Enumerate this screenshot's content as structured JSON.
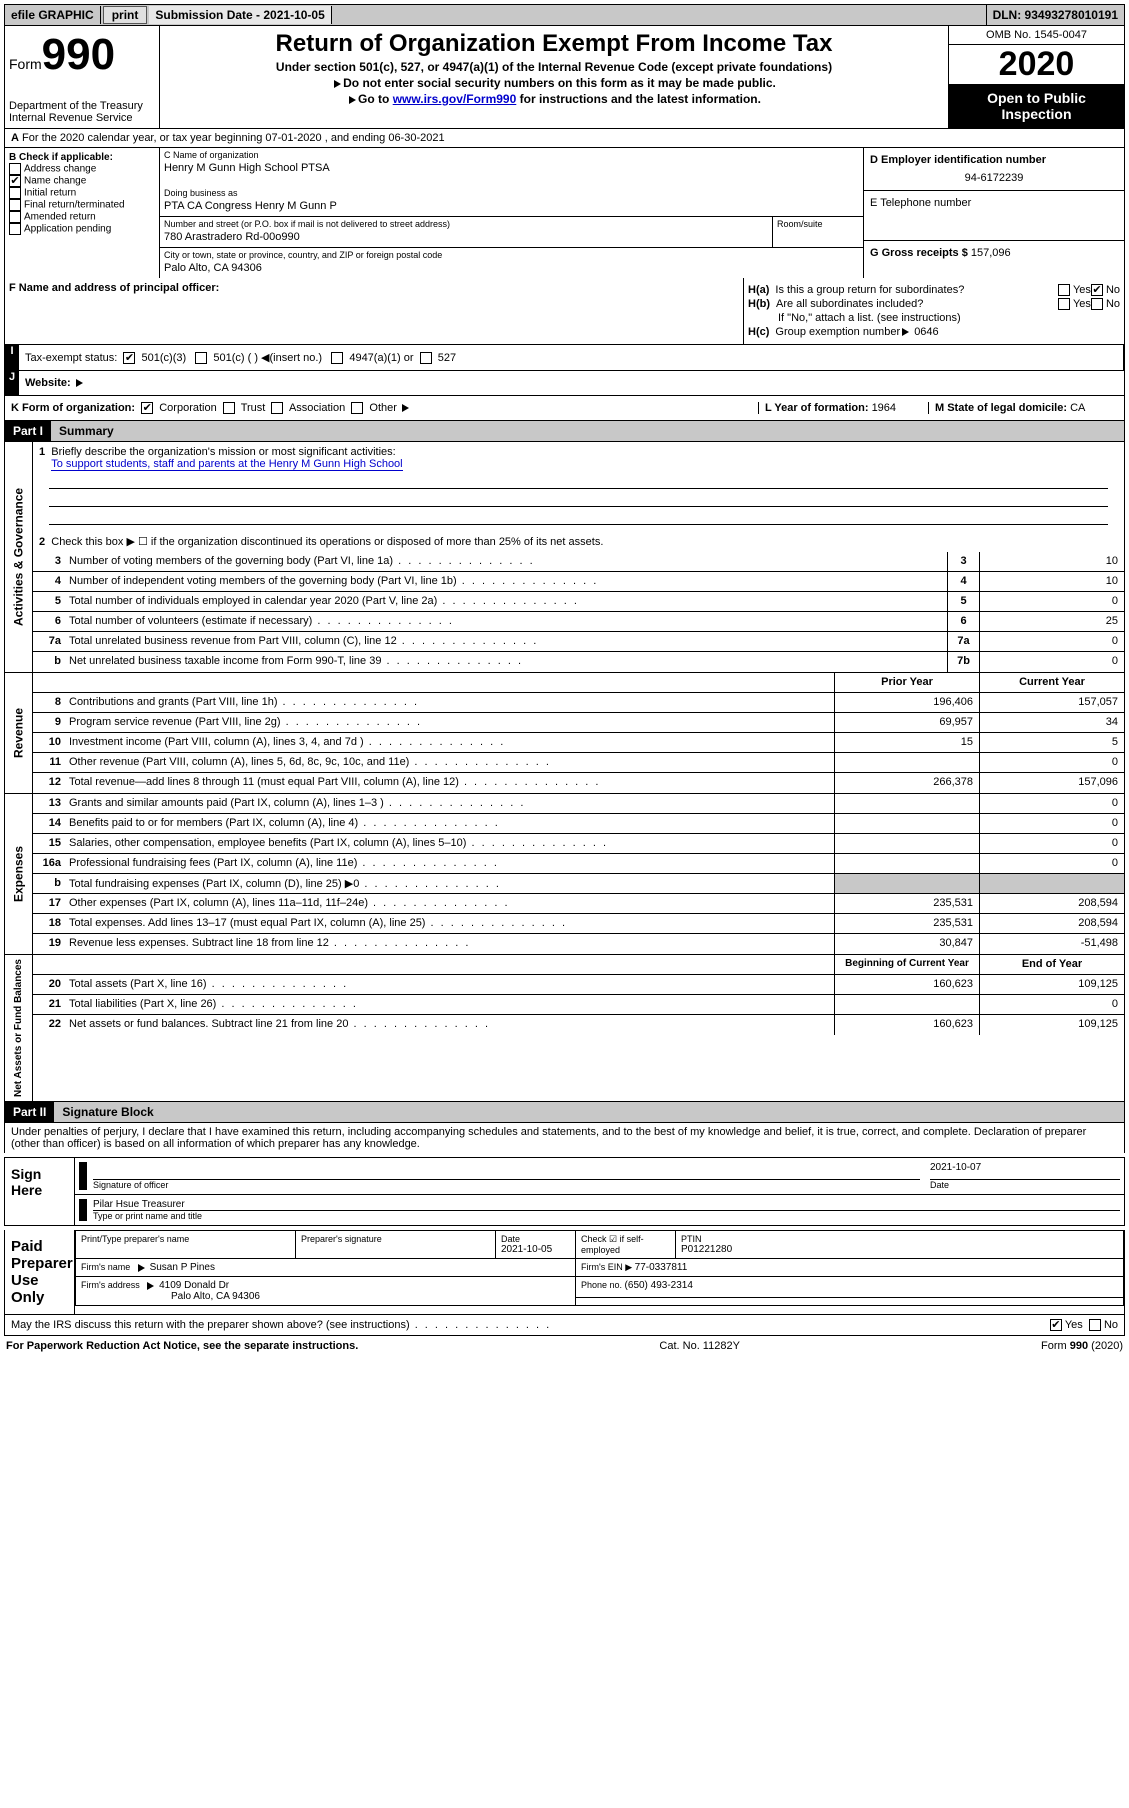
{
  "topbar": {
    "efile": "efile GRAPHIC",
    "print": "print",
    "sub_label": "Submission Date - 2021-10-05",
    "dln": "DLN: 93493278010191"
  },
  "header": {
    "form_word": "Form",
    "form_num": "990",
    "dept": "Department of the Treasury",
    "irs": "Internal Revenue Service",
    "title": "Return of Organization Exempt From Income Tax",
    "sub1": "Under section 501(c), 527, or 4947(a)(1) of the Internal Revenue Code (except private foundations)",
    "sub2": "Do not enter social security numbers on this form as it may be made public.",
    "sub3_a": "Go to ",
    "sub3_link": "www.irs.gov/Form990",
    "sub3_b": " for instructions and the latest information.",
    "omb": "OMB No. 1545-0047",
    "year": "2020",
    "inspect": "Open to Public Inspection"
  },
  "row_a": {
    "text": "For the 2020 calendar year, or tax year beginning 07-01-2020     , and ending 06-30-2021",
    "prefix": "A"
  },
  "col_b": {
    "title": "B Check if applicable:",
    "items": [
      "Address change",
      "Name change",
      "Initial return",
      "Final return/terminated",
      "Amended return",
      "Application pending"
    ],
    "checked_idx": 1
  },
  "col_c": {
    "name_label": "C Name of organization",
    "name": "Henry M Gunn High School PTSA",
    "dba_label": "Doing business as",
    "dba": "PTA CA Congress Henry M Gunn P",
    "addr_label": "Number and street (or P.O. box if mail is not delivered to street address)",
    "room_label": "Room/suite",
    "addr": "780 Arastradero Rd-00o990",
    "city_label": "City or town, state or province, country, and ZIP or foreign postal code",
    "city": "Palo Alto, CA  94306"
  },
  "col_de": {
    "d_label": "D Employer identification number",
    "d_val": "94-6172239",
    "e_label": "E Telephone number",
    "g_label": "G Gross receipts $ ",
    "g_val": "157,096"
  },
  "row_f": {
    "label": "F  Name and address of principal officer:"
  },
  "row_h": {
    "ha": "Is this a group return for subordinates?",
    "hb": "Are all subordinates included?",
    "hb_note": "If \"No,\" attach a list. (see instructions)",
    "hc_label": "Group exemption number",
    "hc_val": "0646",
    "yes": "Yes",
    "no": "No"
  },
  "row_i": {
    "label": "Tax-exempt status:",
    "o501c3": "501(c)(3)",
    "o501c": "501(c) (  )",
    "insert": "(insert no.)",
    "o4947": "4947(a)(1) or",
    "o527": "527"
  },
  "row_j": {
    "label": "Website:"
  },
  "row_k": {
    "label": "K Form of organization:",
    "corp": "Corporation",
    "trust": "Trust",
    "assoc": "Association",
    "other": "Other",
    "l_label": "L Year of formation: ",
    "l_val": "1964",
    "m_label": "M State of legal domicile: ",
    "m_val": "CA"
  },
  "part1": {
    "num": "Part I",
    "title": "Summary"
  },
  "summary": {
    "q1": "Briefly describe the organization's mission or most significant activities:",
    "q1_ans": "To support students, staff and parents at the Henry M Gunn High School",
    "q2": "Check this box ▶ ☐  if the organization discontinued its operations or disposed of more than 25% of its net assets.",
    "rows_single": [
      {
        "n": "3",
        "d": "Number of voting members of the governing body (Part VI, line 1a)",
        "l": "3",
        "v": "10"
      },
      {
        "n": "4",
        "d": "Number of independent voting members of the governing body (Part VI, line 1b)",
        "l": "4",
        "v": "10"
      },
      {
        "n": "5",
        "d": "Total number of individuals employed in calendar year 2020 (Part V, line 2a)",
        "l": "5",
        "v": "0"
      },
      {
        "n": "6",
        "d": "Total number of volunteers (estimate if necessary)",
        "l": "6",
        "v": "25"
      },
      {
        "n": "7a",
        "d": "Total unrelated business revenue from Part VIII, column (C), line 12",
        "l": "7a",
        "v": "0"
      },
      {
        "n": "b",
        "d": "Net unrelated business taxable income from Form 990-T, line 39",
        "l": "7b",
        "v": "0"
      }
    ],
    "hdr_prior": "Prior Year",
    "hdr_current": "Current Year",
    "rev_rows": [
      {
        "n": "8",
        "d": "Contributions and grants (Part VIII, line 1h)",
        "p": "196,406",
        "c": "157,057"
      },
      {
        "n": "9",
        "d": "Program service revenue (Part VIII, line 2g)",
        "p": "69,957",
        "c": "34"
      },
      {
        "n": "10",
        "d": "Investment income (Part VIII, column (A), lines 3, 4, and 7d )",
        "p": "15",
        "c": "5"
      },
      {
        "n": "11",
        "d": "Other revenue (Part VIII, column (A), lines 5, 6d, 8c, 9c, 10c, and 11e)",
        "p": "",
        "c": "0"
      },
      {
        "n": "12",
        "d": "Total revenue—add lines 8 through 11 (must equal Part VIII, column (A), line 12)",
        "p": "266,378",
        "c": "157,096"
      }
    ],
    "exp_rows": [
      {
        "n": "13",
        "d": "Grants and similar amounts paid (Part IX, column (A), lines 1–3 )",
        "p": "",
        "c": "0"
      },
      {
        "n": "14",
        "d": "Benefits paid to or for members (Part IX, column (A), line 4)",
        "p": "",
        "c": "0"
      },
      {
        "n": "15",
        "d": "Salaries, other compensation, employee benefits (Part IX, column (A), lines 5–10)",
        "p": "",
        "c": "0"
      },
      {
        "n": "16a",
        "d": "Professional fundraising fees (Part IX, column (A), line 11e)",
        "p": "",
        "c": "0"
      },
      {
        "n": "b",
        "d": "Total fundraising expenses (Part IX, column (D), line 25) ▶0",
        "p": "SHADE",
        "c": "SHADE"
      },
      {
        "n": "17",
        "d": "Other expenses (Part IX, column (A), lines 11a–11d, 11f–24e)",
        "p": "235,531",
        "c": "208,594"
      },
      {
        "n": "18",
        "d": "Total expenses. Add lines 13–17 (must equal Part IX, column (A), line 25)",
        "p": "235,531",
        "c": "208,594"
      },
      {
        "n": "19",
        "d": "Revenue less expenses. Subtract line 18 from line 12",
        "p": "30,847",
        "c": "-51,498"
      }
    ],
    "hdr_begin": "Beginning of Current Year",
    "hdr_end": "End of Year",
    "net_rows": [
      {
        "n": "20",
        "d": "Total assets (Part X, line 16)",
        "p": "160,623",
        "c": "109,125"
      },
      {
        "n": "21",
        "d": "Total liabilities (Part X, line 26)",
        "p": "",
        "c": "0"
      },
      {
        "n": "22",
        "d": "Net assets or fund balances. Subtract line 21 from line 20",
        "p": "160,623",
        "c": "109,125"
      }
    ]
  },
  "vtabs": {
    "gov": "Activities & Governance",
    "rev": "Revenue",
    "exp": "Expenses",
    "net": "Net Assets or Fund Balances"
  },
  "part2": {
    "num": "Part II",
    "title": "Signature Block"
  },
  "decl": "Under penalties of perjury, I declare that I have examined this return, including accompanying schedules and statements, and to the best of my knowledge and belief, it is true, correct, and complete. Declaration of preparer (other than officer) is based on all information of which preparer has any knowledge.",
  "sign": {
    "here": "Sign Here",
    "sig_label": "Signature of officer",
    "date_label": "Date",
    "date": "2021-10-07",
    "name": "Pilar Hsue Treasurer",
    "name_label": "Type or print name and title"
  },
  "prep": {
    "title": "Paid Preparer Use Only",
    "h_name": "Print/Type preparer's name",
    "h_sig": "Preparer's signature",
    "h_date": "Date",
    "date": "2021-10-05",
    "h_chk": "Check ☑ if self-employed",
    "h_ptin": "PTIN",
    "ptin": "P01221280",
    "firm_name_l": "Firm's name",
    "firm_name": "Susan P Pines",
    "firm_ein_l": "Firm's EIN ▶ ",
    "firm_ein": "77-0337811",
    "firm_addr_l": "Firm's address",
    "firm_addr1": "4109 Donald Dr",
    "firm_addr2": "Palo Alto, CA  94306",
    "phone_l": "Phone no. ",
    "phone": "(650) 493-2314"
  },
  "discuss": {
    "q": "May the IRS discuss this return with the preparer shown above? (see instructions)",
    "yes": "Yes",
    "no": "No"
  },
  "footer": {
    "left": "For Paperwork Reduction Act Notice, see the separate instructions.",
    "mid": "Cat. No. 11282Y",
    "right": "Form 990 (2020)"
  }
}
